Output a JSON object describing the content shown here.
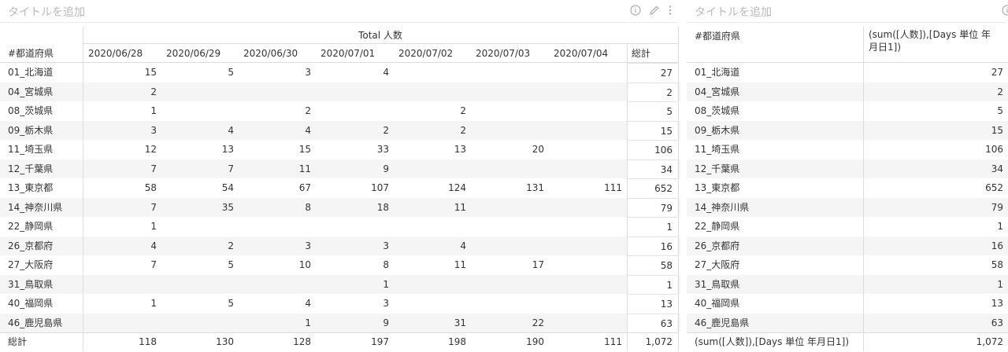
{
  "left_panel": {
    "title": "タイトルを追加",
    "icons": [
      "info-icon",
      "edit-icon",
      "more-icon"
    ],
    "measure_header": "Total 人数",
    "row_header": "#都道府県",
    "columns": [
      "2020/06/28",
      "2020/06/29",
      "2020/06/30",
      "2020/07/01",
      "2020/07/02",
      "2020/07/03",
      "2020/07/04",
      "総計"
    ],
    "rows": [
      {
        "label": "01_北海道",
        "values": [
          "15",
          "5",
          "3",
          "4",
          "",
          "",
          "",
          "27"
        ]
      },
      {
        "label": "04_宮城県",
        "values": [
          "2",
          "",
          "",
          "",
          "",
          "",
          "",
          "2"
        ]
      },
      {
        "label": "08_茨城県",
        "values": [
          "1",
          "",
          "2",
          "",
          "2",
          "",
          "",
          "5"
        ]
      },
      {
        "label": "09_栃木県",
        "values": [
          "3",
          "4",
          "4",
          "2",
          "2",
          "",
          "",
          "15"
        ]
      },
      {
        "label": "11_埼玉県",
        "values": [
          "12",
          "13",
          "15",
          "33",
          "13",
          "20",
          "",
          "106"
        ]
      },
      {
        "label": "12_千葉県",
        "values": [
          "7",
          "7",
          "11",
          "9",
          "",
          "",
          "",
          "34"
        ]
      },
      {
        "label": "13_東京都",
        "values": [
          "58",
          "54",
          "67",
          "107",
          "124",
          "131",
          "111",
          "652"
        ]
      },
      {
        "label": "14_神奈川県",
        "values": [
          "7",
          "35",
          "8",
          "18",
          "11",
          "",
          "",
          "79"
        ]
      },
      {
        "label": "22_静岡県",
        "values": [
          "1",
          "",
          "",
          "",
          "",
          "",
          "",
          "1"
        ]
      },
      {
        "label": "26_京都府",
        "values": [
          "4",
          "2",
          "3",
          "3",
          "4",
          "",
          "",
          "16"
        ]
      },
      {
        "label": "27_大阪府",
        "values": [
          "7",
          "5",
          "10",
          "8",
          "11",
          "17",
          "",
          "58"
        ]
      },
      {
        "label": "31_鳥取県",
        "values": [
          "",
          "",
          "",
          "1",
          "",
          "",
          "",
          "1"
        ]
      },
      {
        "label": "40_福岡県",
        "values": [
          "1",
          "5",
          "4",
          "3",
          "",
          "",
          "",
          "13"
        ]
      },
      {
        "label": "46_鹿児島県",
        "values": [
          "",
          "",
          "1",
          "9",
          "31",
          "22",
          "",
          "63"
        ]
      }
    ],
    "total_row": {
      "label": "総計",
      "values": [
        "118",
        "130",
        "128",
        "197",
        "198",
        "190",
        "111",
        "1,072"
      ]
    }
  },
  "right_panel": {
    "title": "タイトルを追加",
    "row_header": "#都道府県",
    "value_header": "(sum([人数]),[Days 単位 年月日1])",
    "rows": [
      {
        "label": "01_北海道",
        "value": "27"
      },
      {
        "label": "04_宮城県",
        "value": "2"
      },
      {
        "label": "08_茨城県",
        "value": "5"
      },
      {
        "label": "09_栃木県",
        "value": "15"
      },
      {
        "label": "11_埼玉県",
        "value": "106"
      },
      {
        "label": "12_千葉県",
        "value": "34"
      },
      {
        "label": "13_東京都",
        "value": "652"
      },
      {
        "label": "14_神奈川県",
        "value": "79"
      },
      {
        "label": "22_静岡県",
        "value": "1"
      },
      {
        "label": "26_京都府",
        "value": "16"
      },
      {
        "label": "27_大阪府",
        "value": "58"
      },
      {
        "label": "31_鳥取県",
        "value": "1"
      },
      {
        "label": "40_福岡県",
        "value": "13"
      },
      {
        "label": "46_鹿児島県",
        "value": "63"
      }
    ],
    "total_row": {
      "label": "(sum([人数]),[Days 単位 年月日1])",
      "value": "1,072"
    }
  }
}
